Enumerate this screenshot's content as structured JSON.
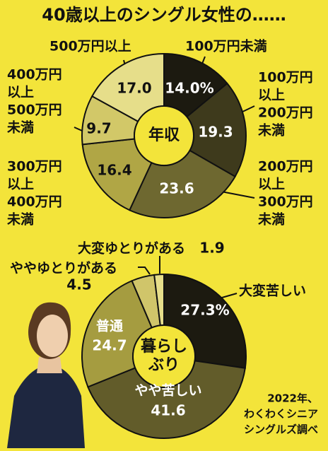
{
  "title": "40歳以上のシングル女性の……",
  "source": [
    "2022年、",
    "わくわくシニア",
    "シングルズ調べ"
  ],
  "chart_data": [
    {
      "type": "pie",
      "center_label": [
        "年収"
      ],
      "categories": [
        [
          "100万円未満"
        ],
        [
          "100万円",
          "以上",
          "200万円",
          "未満"
        ],
        [
          "200万円",
          "以上",
          "300万円",
          "未満"
        ],
        [
          "300万円",
          "以上",
          "400万円",
          "未満"
        ],
        [
          "400万円",
          "以上",
          "500万円",
          "未満"
        ],
        [
          "500万円以上"
        ]
      ],
      "values": [
        14.0,
        19.3,
        23.6,
        16.4,
        9.7,
        17.0
      ],
      "value_labels": [
        "14.0%",
        "19.3",
        "23.6",
        "16.4",
        "9.7",
        "17.0"
      ],
      "colors": [
        "#1c1a10",
        "#3e3a1c",
        "#6e6830",
        "#b0a645",
        "#d2c868",
        "#e6de8a"
      ]
    },
    {
      "type": "pie",
      "center_label": [
        "暮らし",
        "ぶり"
      ],
      "categories": [
        [
          "大変苦しい"
        ],
        [
          "やや苦しい"
        ],
        [
          "普通"
        ],
        [
          "ややゆとりがある"
        ],
        [
          "大変ゆとりがある"
        ]
      ],
      "values": [
        27.3,
        41.6,
        24.7,
        4.5,
        1.9
      ],
      "value_labels": [
        "27.3%",
        "41.6",
        "24.7",
        "4.5",
        "1.9"
      ],
      "colors": [
        "#1c1a10",
        "#625c2a",
        "#a59c40",
        "#d0c56a",
        "#e6de8a"
      ]
    }
  ]
}
